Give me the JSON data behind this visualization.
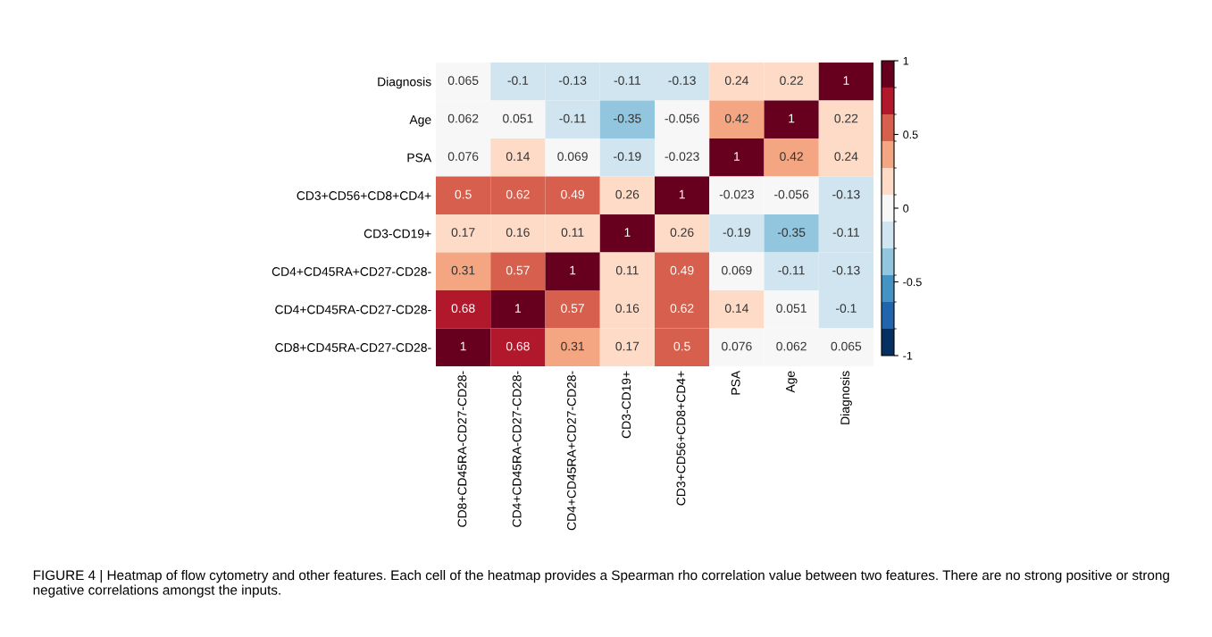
{
  "chart_data": {
    "type": "heatmap",
    "categories": [
      "CD8+CD45RA-CD27-CD28-",
      "CD4+CD45RA-CD27-CD28-",
      "CD4+CD45RA+CD27-CD28-",
      "CD3-CD19+",
      "CD3+CD56+CD8+CD4+",
      "PSA",
      "Age",
      "Diagnosis"
    ],
    "y_categories": [
      "Diagnosis",
      "Age",
      "PSA",
      "CD3+CD56+CD8+CD4+",
      "CD3-CD19+",
      "CD4+CD45RA+CD27-CD28-",
      "CD4+CD45RA-CD27-CD28-",
      "CD8+CD45RA-CD27-CD28-"
    ],
    "cells": [
      [
        0.065,
        -0.1,
        -0.13,
        -0.11,
        -0.13,
        0.24,
        0.22,
        1
      ],
      [
        0.062,
        0.051,
        -0.11,
        -0.35,
        -0.056,
        0.42,
        1,
        0.22
      ],
      [
        0.076,
        0.14,
        0.069,
        -0.19,
        -0.023,
        1,
        0.42,
        0.24
      ],
      [
        0.5,
        0.62,
        0.49,
        0.26,
        1,
        -0.023,
        -0.056,
        -0.13
      ],
      [
        0.17,
        0.16,
        0.11,
        1,
        0.26,
        -0.19,
        -0.35,
        -0.11
      ],
      [
        0.31,
        0.57,
        1,
        0.11,
        0.49,
        0.069,
        -0.11,
        -0.13
      ],
      [
        0.68,
        1,
        0.57,
        0.16,
        0.62,
        0.14,
        0.051,
        -0.1
      ],
      [
        1,
        0.68,
        0.31,
        0.17,
        0.5,
        0.076,
        0.062,
        0.065
      ]
    ],
    "clim": [
      -1,
      1
    ],
    "cticks": [
      -1,
      -0.5,
      0,
      0.5,
      1
    ],
    "data_labels": true,
    "annotations": [
      "FIGURE 4 | Heatmap of flow cytometry and other features. Each cell of the heatmap provides a Spearman rho correlation value between two features. There are no strong positive or strong negative correlations amongst the inputs."
    ]
  }
}
